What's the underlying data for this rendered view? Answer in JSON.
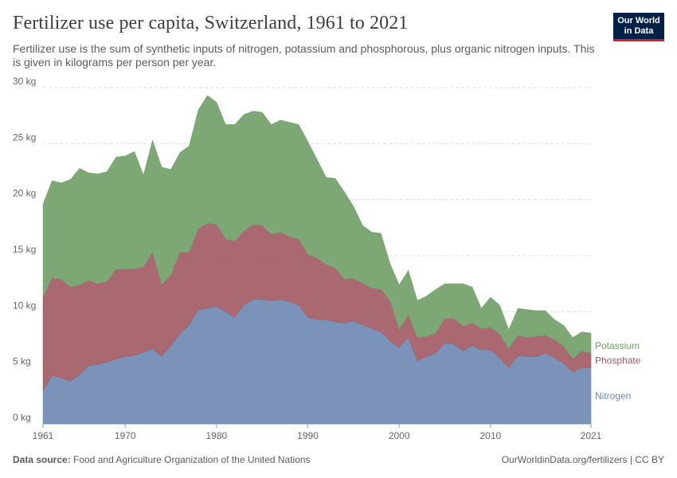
{
  "header": {
    "title": "Fertilizer use per capita, Switzerland, 1961 to 2021",
    "subtitle": "Fertilizer use is the sum of synthetic inputs of nitrogen, potassium and phosphorous, plus organic nitrogen inputs. This is given in kilograms per person per year.",
    "logo_line1": "Our World",
    "logo_line2": "in Data"
  },
  "footer": {
    "source_label": "Data source:",
    "source_text": "Food and Agriculture Organization of the United Nations",
    "url_license": "OurWorldinData.org/fertilizers | CC BY"
  },
  "chart_data": {
    "type": "area",
    "stacked": true,
    "title": "Fertilizer use per capita, Switzerland, 1961 to 2021",
    "xlabel": "",
    "ylabel": "",
    "xlim": [
      1961,
      2021
    ],
    "ylim": [
      0,
      30
    ],
    "grid": true,
    "legend": "right-end labels",
    "x_ticks": [
      "1961",
      "1970",
      "1980",
      "1990",
      "2000",
      "2010",
      "2021"
    ],
    "y_ticks": [
      "0 kg",
      "5 kg",
      "10 kg",
      "15 kg",
      "20 kg",
      "25 kg",
      "30 kg"
    ],
    "x": [
      1961,
      1962,
      1963,
      1964,
      1965,
      1966,
      1967,
      1968,
      1969,
      1970,
      1971,
      1972,
      1973,
      1974,
      1975,
      1976,
      1977,
      1978,
      1979,
      1980,
      1981,
      1982,
      1983,
      1984,
      1985,
      1986,
      1987,
      1988,
      1989,
      1990,
      1991,
      1992,
      1993,
      1994,
      1995,
      1996,
      1997,
      1998,
      1999,
      2000,
      2001,
      2002,
      2003,
      2004,
      2005,
      2006,
      2007,
      2008,
      2009,
      2010,
      2011,
      2012,
      2013,
      2014,
      2015,
      2016,
      2017,
      2018,
      2019,
      2020,
      2021
    ],
    "series": [
      {
        "name": "Nitrogen",
        "color": "#6d87b1",
        "values": [
          3.0,
          4.3,
          4.1,
          3.8,
          4.4,
          5.2,
          5.3,
          5.5,
          5.8,
          6.0,
          6.1,
          6.4,
          6.7,
          6.0,
          7.0,
          8.0,
          8.8,
          10.2,
          10.3,
          10.5,
          10.0,
          9.5,
          10.6,
          11.1,
          11.1,
          11.0,
          11.1,
          10.9,
          10.6,
          9.5,
          9.3,
          9.3,
          9.1,
          9.0,
          9.2,
          8.8,
          8.5,
          8.2,
          7.4,
          6.8,
          7.7,
          5.6,
          6.0,
          6.3,
          7.2,
          7.1,
          6.5,
          7.0,
          6.6,
          6.6,
          5.9,
          5.0,
          6.1,
          6.0,
          6.0,
          6.3,
          5.9,
          5.4,
          4.6,
          5.0,
          5.0
        ]
      },
      {
        "name": "Phosphate",
        "color": "#a15862",
        "values": [
          8.3,
          8.7,
          8.8,
          8.4,
          8.0,
          7.6,
          7.2,
          7.2,
          8.0,
          7.8,
          7.7,
          7.6,
          8.6,
          6.4,
          6.3,
          7.3,
          6.5,
          7.2,
          7.6,
          7.3,
          6.5,
          6.8,
          6.6,
          6.7,
          6.6,
          5.9,
          6.0,
          5.8,
          5.9,
          5.6,
          5.5,
          4.9,
          4.8,
          3.9,
          3.8,
          3.7,
          3.6,
          3.8,
          3.6,
          1.6,
          2.0,
          2.1,
          1.8,
          1.8,
          2.2,
          2.3,
          2.2,
          2.0,
          1.9,
          2.0,
          2.1,
          1.7,
          1.8,
          1.7,
          1.8,
          1.6,
          1.6,
          1.5,
          1.2,
          1.5,
          1.3
        ]
      },
      {
        "name": "Potassium",
        "color": "#6f9e66",
        "values": [
          8.3,
          8.7,
          8.6,
          9.6,
          10.4,
          9.6,
          9.8,
          9.8,
          10.0,
          10.1,
          10.5,
          8.2,
          10.0,
          10.5,
          9.4,
          8.9,
          9.5,
          10.6,
          11.4,
          10.9,
          10.2,
          10.4,
          10.4,
          10.1,
          10.1,
          9.8,
          10.0,
          10.2,
          10.2,
          10.1,
          8.8,
          7.8,
          8.0,
          7.8,
          6.4,
          5.2,
          5.0,
          5.0,
          3.3,
          4.0,
          4.0,
          3.3,
          3.6,
          3.9,
          3.1,
          3.1,
          3.8,
          3.2,
          1.8,
          2.7,
          2.6,
          1.7,
          2.4,
          2.5,
          2.3,
          2.2,
          1.8,
          1.9,
          1.9,
          1.7,
          1.8
        ]
      }
    ]
  }
}
